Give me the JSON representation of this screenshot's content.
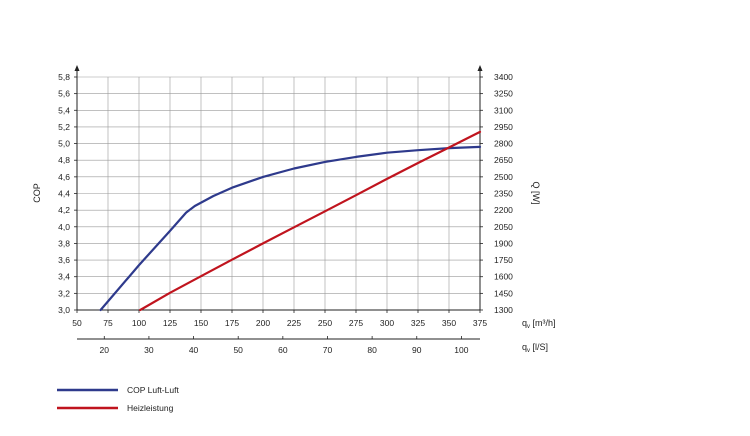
{
  "chart_data": {
    "type": "line",
    "colors": {
      "cop": "#2e3a8c",
      "heat": "#c0141e",
      "grid": "#9a9a9a",
      "axis": "#222222"
    },
    "y_left": {
      "label": "COP",
      "range": [
        3.0,
        5.8
      ],
      "ticks": [
        "3,0",
        "3,2",
        "3,4",
        "3,6",
        "3,8",
        "4,0",
        "4,2",
        "4,4",
        "4,6",
        "4,8",
        "5,0",
        "5,2",
        "5,4",
        "5,6",
        "5,8"
      ]
    },
    "y_right": {
      "label": "Q [W]",
      "range": [
        1300,
        3400
      ],
      "ticks": [
        "1300",
        "1450",
        "1600",
        "1750",
        "1900",
        "2050",
        "2200",
        "2350",
        "2500",
        "2650",
        "2800",
        "2950",
        "3100",
        "3250",
        "3400"
      ]
    },
    "x_top": {
      "label": "qv [m³/h]",
      "range": [
        50,
        375
      ],
      "ticks": [
        "50",
        "75",
        "100",
        "125",
        "150",
        "175",
        "200",
        "225",
        "250",
        "275",
        "300",
        "325",
        "350",
        "375"
      ]
    },
    "x_bottom": {
      "label": "qv [l/S]",
      "ticks": [
        "20",
        "30",
        "40",
        "50",
        "60",
        "70",
        "80",
        "90",
        "100"
      ]
    },
    "series": [
      {
        "name": "COP Luft-Luft",
        "axis": "left",
        "x": [
          69,
          100,
          125,
          138,
          145,
          160,
          175,
          200,
          225,
          250,
          275,
          300,
          325,
          350,
          375
        ],
        "y": [
          3.0,
          3.54,
          3.95,
          4.17,
          4.25,
          4.37,
          4.47,
          4.6,
          4.7,
          4.78,
          4.84,
          4.89,
          4.92,
          4.945,
          4.96
        ]
      },
      {
        "name": "Heizleistung",
        "axis": "right",
        "x": [
          101,
          125,
          150,
          175,
          200,
          225,
          250,
          275,
          300,
          325,
          350,
          375
        ],
        "y": [
          1300,
          1455,
          1605,
          1753,
          1900,
          2045,
          2190,
          2335,
          2482,
          2625,
          2765,
          2905
        ]
      }
    ]
  }
}
